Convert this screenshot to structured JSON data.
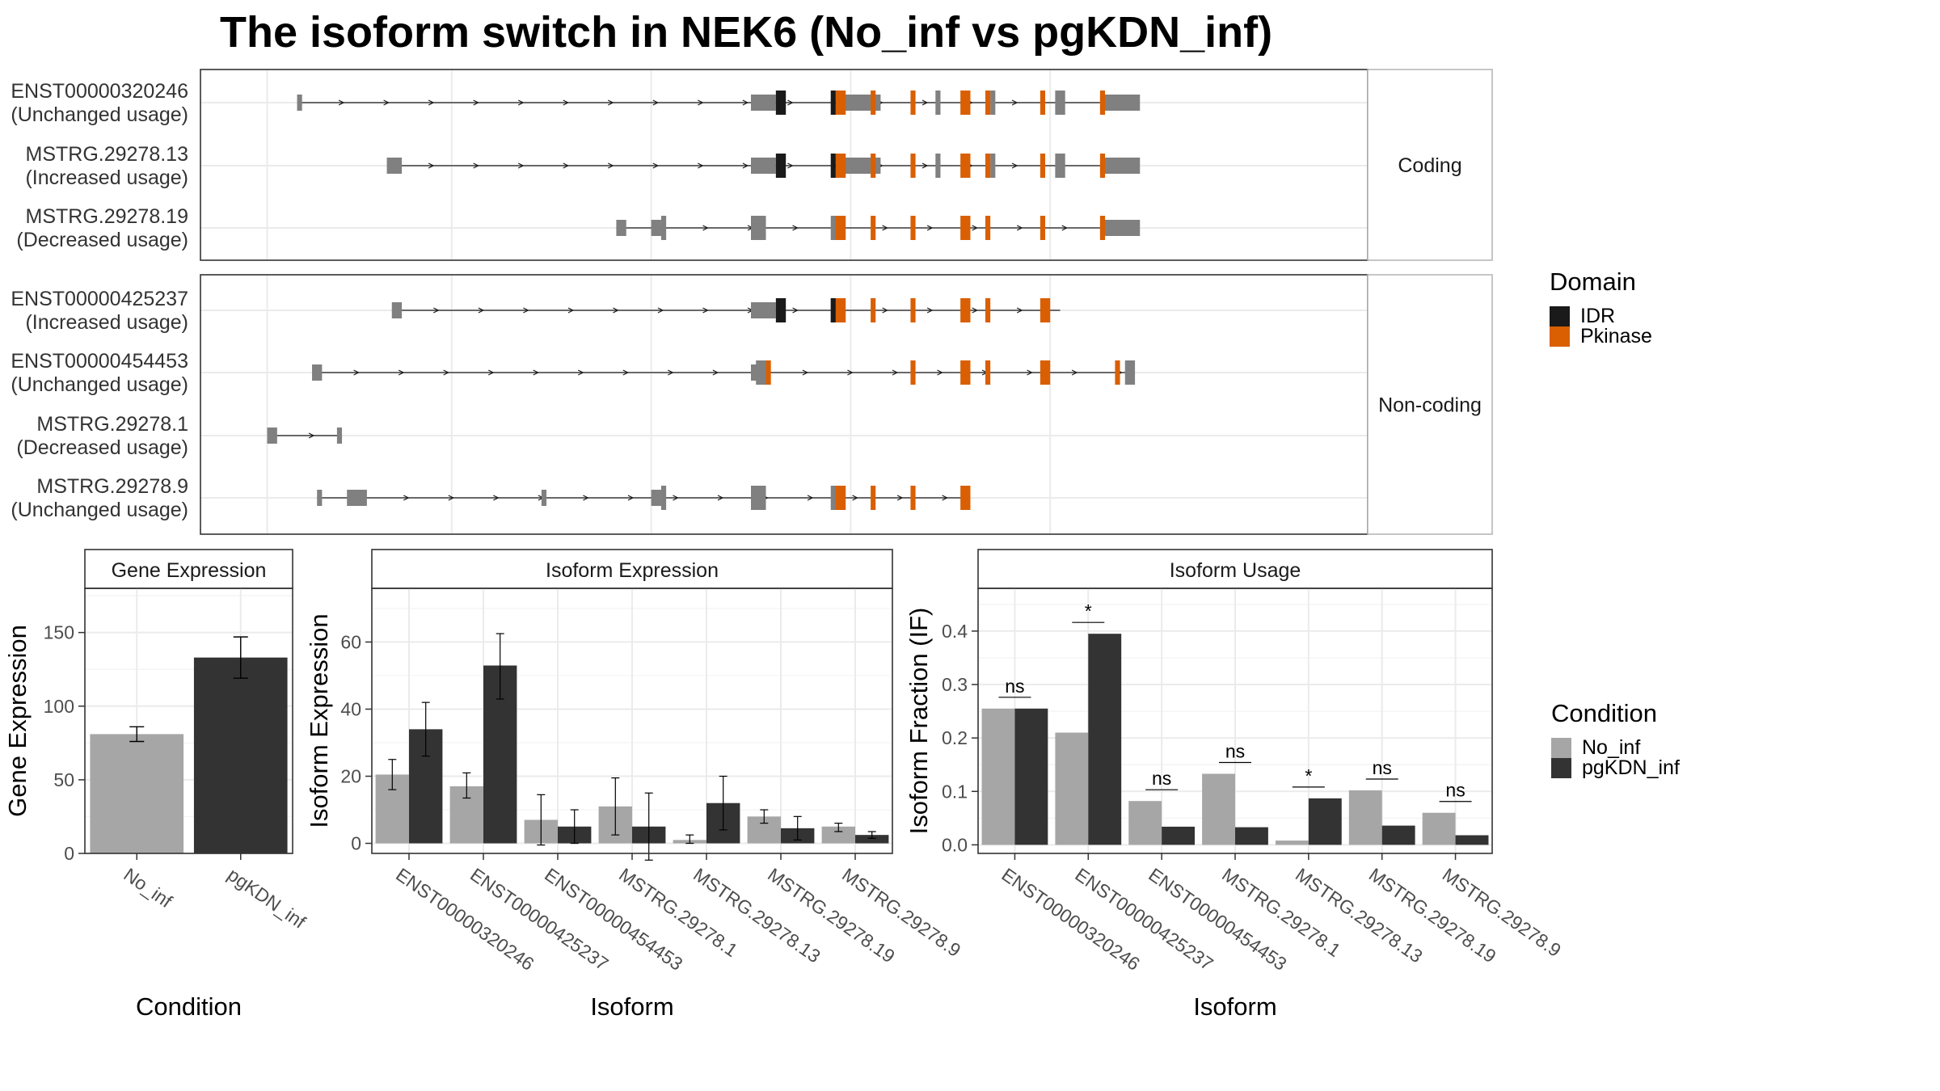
{
  "title": "The isoform switch in NEK6 (No_inf vs pgKDN_inf)",
  "colors": {
    "intron": "#1a1a1a",
    "exon": "#808080",
    "IDR": "#1a1a1a",
    "Pkinase": "#d95f02",
    "No_inf": "#a6a6a6",
    "pgKDN_inf": "#333333"
  },
  "structure": {
    "domain_legend": {
      "title": "Domain",
      "items": [
        "IDR",
        "Pkinase"
      ]
    },
    "facets": [
      {
        "label": "Coding",
        "rows": [
          {
            "line1": "ENST00000320246",
            "line2": "(Unchanged usage)",
            "start": 4.9,
            "end": 21.0,
            "exons": [
              [
                4.9,
                5.0,
                0.7
              ],
              [
                14.0,
                14.5,
                0.7
              ],
              [
                15.7,
                16.6,
                0.7
              ],
              [
                17.7,
                17.8,
                1
              ],
              [
                18.8,
                18.9,
                1
              ],
              [
                20.1,
                20.3,
                1
              ],
              [
                21.0,
                21.8,
                0.7
              ]
            ],
            "domains": [
              [
                "IDR",
                14.5,
                14.7,
                1
              ],
              [
                "IDR",
                15.6,
                15.7,
                1
              ],
              [
                "Pkinase",
                15.7,
                15.9,
                1
              ],
              [
                "Pkinase",
                16.4,
                16.5,
                1
              ],
              [
                "Pkinase",
                17.2,
                17.3,
                1
              ],
              [
                "Pkinase",
                18.2,
                18.4,
                1
              ],
              [
                "Pkinase",
                18.7,
                18.8,
                1
              ],
              [
                "Pkinase",
                19.8,
                19.9,
                1
              ],
              [
                "Pkinase",
                21.0,
                21.1,
                1
              ]
            ]
          },
          {
            "line1": "MSTRG.29278.13",
            "line2": "(Increased usage)",
            "start": 6.7,
            "end": 21.0,
            "exons": [
              [
                6.7,
                7.0,
                0.7
              ],
              [
                14.0,
                14.5,
                0.7
              ],
              [
                15.7,
                16.6,
                0.7
              ],
              [
                17.7,
                17.8,
                1
              ],
              [
                18.8,
                18.9,
                1
              ],
              [
                20.1,
                20.3,
                1
              ],
              [
                21.0,
                21.8,
                0.7
              ]
            ],
            "domains": [
              [
                "IDR",
                14.5,
                14.7,
                1
              ],
              [
                "IDR",
                15.6,
                15.7,
                1
              ],
              [
                "Pkinase",
                15.7,
                15.9,
                1
              ],
              [
                "Pkinase",
                16.4,
                16.5,
                1
              ],
              [
                "Pkinase",
                17.2,
                17.3,
                1
              ],
              [
                "Pkinase",
                18.2,
                18.4,
                1
              ],
              [
                "Pkinase",
                18.7,
                18.8,
                1
              ],
              [
                "Pkinase",
                19.8,
                19.9,
                1
              ],
              [
                "Pkinase",
                21.0,
                21.1,
                1
              ]
            ]
          },
          {
            "line1": "MSTRG.29278.19",
            "line2": "(Decreased usage)",
            "start": 11.3,
            "end": 21.0,
            "exons": [
              [
                11.3,
                11.5,
                0.7
              ],
              [
                12.0,
                12.2,
                0.7
              ],
              [
                12.2,
                12.3,
                1
              ],
              [
                14.0,
                14.3,
                1
              ],
              [
                15.6,
                15.8,
                1
              ],
              [
                21.0,
                21.8,
                0.7
              ]
            ],
            "domains": [
              [
                "Pkinase",
                15.7,
                15.9,
                1
              ],
              [
                "Pkinase",
                16.4,
                16.5,
                1
              ],
              [
                "Pkinase",
                17.2,
                17.3,
                1
              ],
              [
                "Pkinase",
                18.2,
                18.4,
                1
              ],
              [
                "Pkinase",
                18.7,
                18.8,
                1
              ],
              [
                "Pkinase",
                19.8,
                19.9,
                1
              ],
              [
                "Pkinase",
                21.0,
                21.1,
                1
              ]
            ]
          }
        ]
      },
      {
        "label": "Non-coding",
        "rows": [
          {
            "line1": "ENST00000425237",
            "line2": "(Increased usage)",
            "start": 6.8,
            "end": 20.2,
            "exons": [
              [
                6.8,
                7.0,
                0.7
              ],
              [
                14.0,
                14.5,
                0.7
              ],
              [
                15.6,
                15.7,
                1
              ]
            ],
            "domains": [
              [
                "IDR",
                14.5,
                14.7,
                1
              ],
              [
                "IDR",
                15.6,
                15.7,
                1
              ],
              [
                "Pkinase",
                15.7,
                15.9,
                1
              ],
              [
                "Pkinase",
                16.4,
                16.5,
                1
              ],
              [
                "Pkinase",
                17.2,
                17.3,
                1
              ],
              [
                "Pkinase",
                18.2,
                18.4,
                1
              ],
              [
                "Pkinase",
                18.7,
                18.8,
                1
              ],
              [
                "Pkinase",
                19.8,
                20.0,
                1
              ]
            ]
          },
          {
            "line1": "ENST00000454453",
            "line2": "(Unchanged usage)",
            "start": 5.2,
            "end": 21.6,
            "exons": [
              [
                5.2,
                5.4,
                0.7
              ],
              [
                14.0,
                14.2,
                0.7
              ],
              [
                14.1,
                14.3,
                1
              ],
              [
                21.5,
                21.7,
                1
              ]
            ],
            "domains": [
              [
                "Pkinase",
                14.3,
                14.4,
                1
              ],
              [
                "Pkinase",
                17.2,
                17.3,
                1
              ],
              [
                "Pkinase",
                18.2,
                18.4,
                1
              ],
              [
                "Pkinase",
                18.7,
                18.8,
                1
              ],
              [
                "Pkinase",
                19.8,
                20.0,
                1
              ],
              [
                "Pkinase",
                21.3,
                21.4,
                1
              ]
            ]
          },
          {
            "line1": "MSTRG.29278.1",
            "line2": "(Decreased usage)",
            "start": 4.3,
            "end": 5.8,
            "exons": [
              [
                4.3,
                4.5,
                0.7
              ],
              [
                5.7,
                5.8,
                0.7
              ]
            ],
            "domains": []
          },
          {
            "line1": "MSTRG.29278.9",
            "line2": "(Unchanged usage)",
            "start": 5.3,
            "end": 18.4,
            "exons": [
              [
                5.3,
                5.4,
                0.7
              ],
              [
                5.9,
                6.3,
                0.7
              ],
              [
                9.8,
                9.9,
                0.7
              ],
              [
                12.0,
                12.2,
                0.7
              ],
              [
                12.2,
                12.3,
                1
              ],
              [
                14.0,
                14.3,
                1
              ],
              [
                15.6,
                15.8,
                1
              ]
            ],
            "domains": [
              [
                "Pkinase",
                15.7,
                15.9,
                1
              ],
              [
                "Pkinase",
                16.4,
                16.5,
                1
              ],
              [
                "Pkinase",
                17.2,
                17.3,
                1
              ],
              [
                "Pkinase",
                18.2,
                18.4,
                1
              ]
            ]
          }
        ]
      }
    ]
  },
  "chart_data": [
    {
      "type": "bar",
      "title": "Gene Expression",
      "xlabel": "Condition",
      "ylabel": "Gene Expression",
      "ylim": [
        0,
        180
      ],
      "yticks": [
        0,
        50,
        100,
        150
      ],
      "categories": [
        "No_inf",
        "pgKDN_inf"
      ],
      "values": [
        81,
        133
      ],
      "errors": [
        [
          76,
          86
        ],
        [
          119,
          147
        ]
      ],
      "colors": [
        "No_inf",
        "pgKDN_inf"
      ]
    },
    {
      "type": "bar",
      "title": "Isoform Expression",
      "xlabel": "Isoform",
      "ylabel": "Isoform Expression",
      "ylim": [
        -3,
        76
      ],
      "yticks": [
        0,
        20,
        40,
        60
      ],
      "categories": [
        "ENST00000320246",
        "ENST00000425237",
        "ENST00000454453",
        "MSTRG.29278.1",
        "MSTRG.29278.13",
        "MSTRG.29278.19",
        "MSTRG.29278.9"
      ],
      "series": [
        {
          "name": "No_inf",
          "values": [
            20.5,
            17,
            7,
            11,
            1,
            8,
            5
          ],
          "errors": [
            [
              16,
              25
            ],
            [
              13.5,
              21
            ],
            [
              -0.5,
              14.5
            ],
            [
              2.5,
              19.5
            ],
            [
              0,
              2.5
            ],
            [
              6,
              10
            ],
            [
              3.5,
              6
            ]
          ]
        },
        {
          "name": "pgKDN_inf",
          "values": [
            34,
            53,
            5,
            5,
            12,
            4.5,
            2.5
          ],
          "errors": [
            [
              26,
              42
            ],
            [
              43,
              62.5
            ],
            [
              0,
              10
            ],
            [
              -5,
              15
            ],
            [
              4,
              20
            ],
            [
              1,
              8
            ],
            [
              1.5,
              3.5
            ]
          ]
        }
      ]
    },
    {
      "type": "bar",
      "title": "Isoform Usage",
      "xlabel": "Isoform",
      "ylabel": "Isoform Fraction (IF)",
      "ylim": [
        -0.016,
        0.48
      ],
      "yticks": [
        0.0,
        0.1,
        0.2,
        0.3,
        0.4
      ],
      "ytick_labels": [
        "0.0",
        "0.1",
        "0.2",
        "0.3",
        "0.4"
      ],
      "categories": [
        "ENST00000320246",
        "ENST00000425237",
        "ENST00000454453",
        "MSTRG.29278.1",
        "MSTRG.29278.13",
        "MSTRG.29278.19",
        "MSTRG.29278.9"
      ],
      "series": [
        {
          "name": "No_inf",
          "values": [
            0.255,
            0.21,
            0.082,
            0.133,
            0.008,
            0.102,
            0.06
          ]
        },
        {
          "name": "pgKDN_inf",
          "values": [
            0.255,
            0.395,
            0.034,
            0.033,
            0.087,
            0.036,
            0.018
          ]
        }
      ],
      "significance": [
        "ns",
        "*",
        "ns",
        "ns",
        "*",
        "ns",
        "ns"
      ]
    }
  ],
  "condition_legend": {
    "title": "Condition",
    "items": [
      "No_inf",
      "pgKDN_inf"
    ]
  }
}
